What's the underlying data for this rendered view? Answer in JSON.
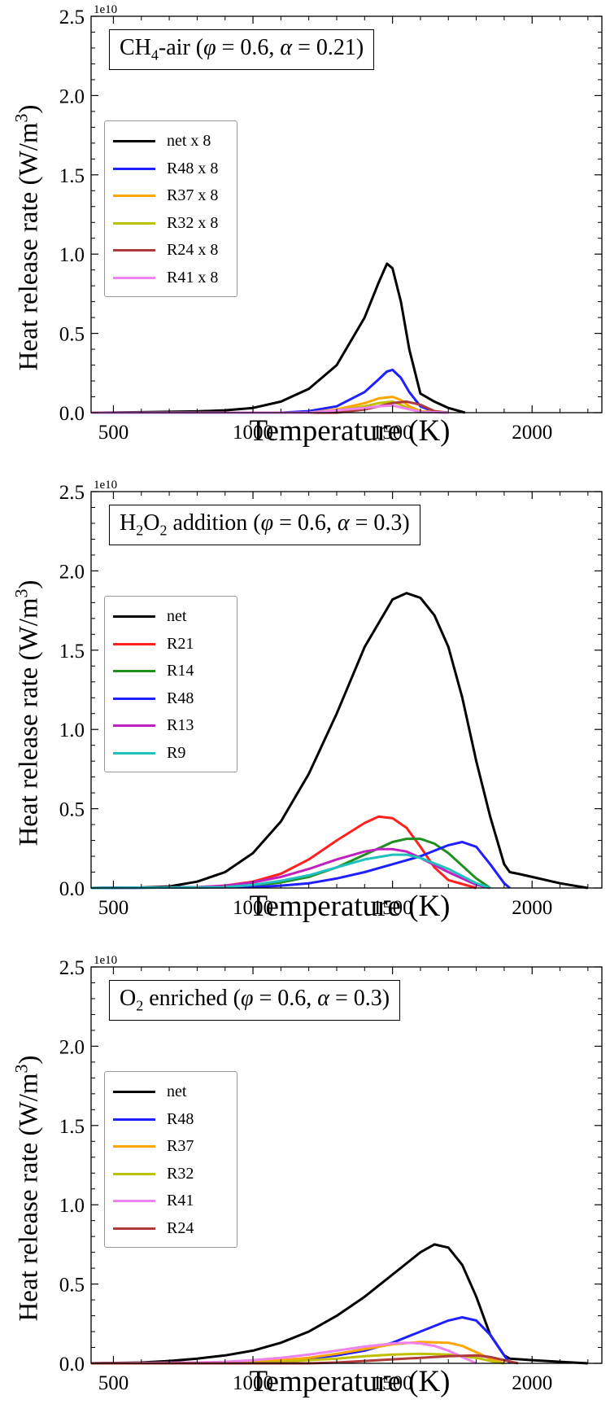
{
  "chart_data": [
    {
      "type": "line",
      "title": "CH4-air (φ = 0.6, α = 0.21)",
      "title_parts": {
        "pre": "CH",
        "sub": "4",
        "post": "-air (",
        "phi": "φ",
        "mid1": " = 0.6, ",
        "alpha": "α",
        "mid2": " = 0.21)"
      },
      "xlabel": "Temperature (K)",
      "ylabel": "Heat release rate (W/m³)",
      "ylabel_parts": {
        "pre": "Heat release rate (W/m",
        "sup": "3",
        "post": ")"
      },
      "sci_label": "1e10",
      "xlim": [
        420,
        2250
      ],
      "ylim": [
        0,
        2.5
      ],
      "xticks": [
        500,
        1000,
        1500,
        2000
      ],
      "xtick_labels": [
        "500",
        "1000",
        "1500",
        "2000"
      ],
      "yticks": [
        0.0,
        0.5,
        1.0,
        1.5,
        2.0,
        2.5
      ],
      "ytick_labels": [
        "0.0",
        "0.5",
        "1.0",
        "1.5",
        "2.0",
        "2.5"
      ],
      "series": [
        {
          "name": "net x 8",
          "color": "#000000",
          "x": [
            420,
            600,
            800,
            900,
            1000,
            1100,
            1200,
            1300,
            1400,
            1450,
            1480,
            1500,
            1530,
            1560,
            1600,
            1650,
            1700,
            1760
          ],
          "y": [
            0,
            0.003,
            0.008,
            0.015,
            0.03,
            0.07,
            0.15,
            0.3,
            0.6,
            0.82,
            0.94,
            0.91,
            0.7,
            0.4,
            0.12,
            0.07,
            0.03,
            0
          ]
        },
        {
          "name": "R48 x 8",
          "color": "#1f1fff",
          "x": [
            420,
            1100,
            1200,
            1300,
            1400,
            1450,
            1480,
            1500,
            1530,
            1560,
            1600,
            1650,
            1700
          ],
          "y": [
            0,
            0,
            0.01,
            0.04,
            0.13,
            0.21,
            0.26,
            0.27,
            0.22,
            0.13,
            0.04,
            0.005,
            0
          ]
        },
        {
          "name": "R37 x 8",
          "color": "#ffa500",
          "x": [
            420,
            1200,
            1300,
            1400,
            1450,
            1500,
            1530,
            1560,
            1600,
            1700
          ],
          "y": [
            0,
            0,
            0.02,
            0.06,
            0.09,
            0.1,
            0.08,
            0.04,
            0.01,
            0
          ]
        },
        {
          "name": "R32 x 8",
          "color": "#bfbf00",
          "x": [
            420,
            1200,
            1300,
            1400,
            1450,
            1500,
            1530,
            1560,
            1600,
            1700
          ],
          "y": [
            0,
            0,
            0.015,
            0.04,
            0.06,
            0.07,
            0.05,
            0.025,
            0.005,
            0
          ]
        },
        {
          "name": "R24 x 8",
          "color": "#b03a3a",
          "x": [
            420,
            1300,
            1400,
            1450,
            1500,
            1550,
            1600,
            1650,
            1700
          ],
          "y": [
            0,
            0,
            0.02,
            0.04,
            0.06,
            0.07,
            0.05,
            0.01,
            0
          ]
        },
        {
          "name": "R41 x 8",
          "color": "#ee82ee",
          "x": [
            420,
            1200,
            1300,
            1400,
            1450,
            1500,
            1550,
            1600,
            1700
          ],
          "y": [
            0,
            0,
            0.015,
            0.03,
            0.04,
            0.045,
            0.025,
            0.005,
            0
          ]
        }
      ]
    },
    {
      "type": "line",
      "title": "H2O2 addition (φ = 0.6, α = 0.3)",
      "title_parts": {
        "pre": "H",
        "sub": "2",
        "post": "O",
        "sub2": "2",
        "post2": " addition (",
        "phi": "φ",
        "mid1": " = 0.6, ",
        "alpha": "α",
        "mid2": " = 0.3)"
      },
      "xlabel": "Temperature (K)",
      "ylabel": "Heat release rate (W/m³)",
      "ylabel_parts": {
        "pre": "Heat release rate (W/m",
        "sup": "3",
        "post": ")"
      },
      "sci_label": "1e10",
      "xlim": [
        420,
        2250
      ],
      "ylim": [
        0,
        2.5
      ],
      "xticks": [
        500,
        1000,
        1500,
        2000
      ],
      "xtick_labels": [
        "500",
        "1000",
        "1500",
        "2000"
      ],
      "yticks": [
        0.0,
        0.5,
        1.0,
        1.5,
        2.0,
        2.5
      ],
      "ytick_labels": [
        "0.0",
        "0.5",
        "1.0",
        "1.5",
        "2.0",
        "2.5"
      ],
      "series": [
        {
          "name": "net",
          "color": "#000000",
          "x": [
            420,
            600,
            700,
            800,
            900,
            1000,
            1100,
            1200,
            1300,
            1400,
            1500,
            1550,
            1600,
            1650,
            1700,
            1750,
            1800,
            1850,
            1900,
            1920,
            1950,
            2000,
            2100,
            2200
          ],
          "y": [
            0,
            0.003,
            0.01,
            0.04,
            0.1,
            0.22,
            0.42,
            0.72,
            1.1,
            1.52,
            1.82,
            1.86,
            1.83,
            1.72,
            1.52,
            1.2,
            0.8,
            0.45,
            0.15,
            0.1,
            0.09,
            0.07,
            0.03,
            0
          ]
        },
        {
          "name": "R21",
          "color": "#ff2020",
          "x": [
            420,
            800,
            900,
            1000,
            1100,
            1200,
            1300,
            1400,
            1450,
            1500,
            1550,
            1600,
            1650,
            1700,
            1800
          ],
          "y": [
            0,
            0.005,
            0.015,
            0.04,
            0.09,
            0.18,
            0.3,
            0.41,
            0.45,
            0.44,
            0.38,
            0.26,
            0.13,
            0.05,
            0
          ]
        },
        {
          "name": "R14",
          "color": "#1f8f1f",
          "x": [
            420,
            900,
            1000,
            1100,
            1200,
            1300,
            1400,
            1500,
            1550,
            1600,
            1650,
            1700,
            1750,
            1800,
            1850
          ],
          "y": [
            0,
            0.005,
            0.015,
            0.035,
            0.07,
            0.13,
            0.21,
            0.29,
            0.31,
            0.31,
            0.28,
            0.22,
            0.14,
            0.06,
            0
          ]
        },
        {
          "name": "R48",
          "color": "#1f1fff",
          "x": [
            420,
            1000,
            1100,
            1200,
            1300,
            1400,
            1500,
            1600,
            1700,
            1750,
            1800,
            1850,
            1900,
            1920
          ],
          "y": [
            0,
            0.005,
            0.015,
            0.03,
            0.06,
            0.1,
            0.15,
            0.2,
            0.27,
            0.29,
            0.26,
            0.15,
            0.03,
            0
          ]
        },
        {
          "name": "R13",
          "color": "#c020c0",
          "x": [
            420,
            800,
            900,
            1000,
            1100,
            1200,
            1300,
            1400,
            1450,
            1500,
            1550,
            1600,
            1700,
            1800,
            1850
          ],
          "y": [
            0,
            0.005,
            0.015,
            0.035,
            0.07,
            0.12,
            0.18,
            0.23,
            0.245,
            0.245,
            0.23,
            0.19,
            0.1,
            0.02,
            0
          ]
        },
        {
          "name": "R9",
          "color": "#20c0c0",
          "x": [
            420,
            900,
            1000,
            1100,
            1200,
            1300,
            1400,
            1500,
            1550,
            1600,
            1700,
            1800,
            1850
          ],
          "y": [
            0,
            0.005,
            0.02,
            0.045,
            0.08,
            0.13,
            0.18,
            0.21,
            0.21,
            0.19,
            0.12,
            0.03,
            0
          ]
        }
      ]
    },
    {
      "type": "line",
      "title": "O2 enriched (φ = 0.6, α = 0.3)",
      "title_parts": {
        "pre": "O",
        "sub": "2",
        "post": " enriched (",
        "phi": "φ",
        "mid1": " = 0.6, ",
        "alpha": "α",
        "mid2": " = 0.3)"
      },
      "xlabel": "Temperature (K)",
      "ylabel": "Heat release rate (W/m³)",
      "ylabel_parts": {
        "pre": "Heat release rate (W/m",
        "sup": "3",
        "post": ")"
      },
      "sci_label": "1e10",
      "xlim": [
        420,
        2250
      ],
      "ylim": [
        0,
        2.5
      ],
      "xticks": [
        500,
        1000,
        1500,
        2000
      ],
      "xtick_labels": [
        "500",
        "1000",
        "1500",
        "2000"
      ],
      "yticks": [
        0.0,
        0.5,
        1.0,
        1.5,
        2.0,
        2.5
      ],
      "ytick_labels": [
        "0.0",
        "0.5",
        "1.0",
        "1.5",
        "2.0",
        "2.5"
      ],
      "series": [
        {
          "name": "net",
          "color": "#000000",
          "x": [
            420,
            600,
            700,
            800,
            900,
            1000,
            1100,
            1200,
            1300,
            1400,
            1500,
            1600,
            1650,
            1700,
            1750,
            1800,
            1850,
            1900,
            1920,
            2000,
            2100,
            2200
          ],
          "y": [
            0,
            0.005,
            0.015,
            0.03,
            0.05,
            0.08,
            0.13,
            0.2,
            0.3,
            0.42,
            0.56,
            0.7,
            0.75,
            0.73,
            0.62,
            0.42,
            0.18,
            0.05,
            0.03,
            0.02,
            0.01,
            0
          ]
        },
        {
          "name": "R48",
          "color": "#1f1fff",
          "x": [
            420,
            1000,
            1100,
            1200,
            1300,
            1400,
            1500,
            1600,
            1700,
            1750,
            1800,
            1850,
            1900,
            1920
          ],
          "y": [
            0,
            0.005,
            0.015,
            0.03,
            0.05,
            0.08,
            0.13,
            0.2,
            0.27,
            0.29,
            0.27,
            0.18,
            0.05,
            0
          ]
        },
        {
          "name": "R37",
          "color": "#ffa500",
          "x": [
            420,
            900,
            1000,
            1100,
            1200,
            1300,
            1400,
            1500,
            1600,
            1700,
            1750,
            1800,
            1850,
            1900
          ],
          "y": [
            0,
            0.003,
            0.01,
            0.02,
            0.035,
            0.06,
            0.09,
            0.12,
            0.135,
            0.13,
            0.11,
            0.07,
            0.03,
            0
          ]
        },
        {
          "name": "R32",
          "color": "#bfbf00",
          "x": [
            420,
            1000,
            1100,
            1200,
            1300,
            1400,
            1500,
            1600,
            1700,
            1800,
            1850,
            1900
          ],
          "y": [
            0,
            0.003,
            0.01,
            0.02,
            0.03,
            0.045,
            0.055,
            0.06,
            0.055,
            0.035,
            0.015,
            0
          ]
        },
        {
          "name": "R41",
          "color": "#ee82ee",
          "x": [
            420,
            800,
            900,
            1000,
            1100,
            1200,
            1300,
            1400,
            1500,
            1550,
            1600,
            1650,
            1700,
            1750,
            1800
          ],
          "y": [
            0,
            0.005,
            0.01,
            0.02,
            0.035,
            0.055,
            0.08,
            0.105,
            0.125,
            0.13,
            0.125,
            0.11,
            0.08,
            0.04,
            0
          ]
        },
        {
          "name": "R24",
          "color": "#b03a3a",
          "x": [
            420,
            1200,
            1300,
            1400,
            1500,
            1600,
            1700,
            1800,
            1850,
            1900,
            1950
          ],
          "y": [
            0,
            0,
            0.005,
            0.015,
            0.025,
            0.035,
            0.045,
            0.05,
            0.04,
            0.02,
            0
          ]
        }
      ]
    }
  ]
}
